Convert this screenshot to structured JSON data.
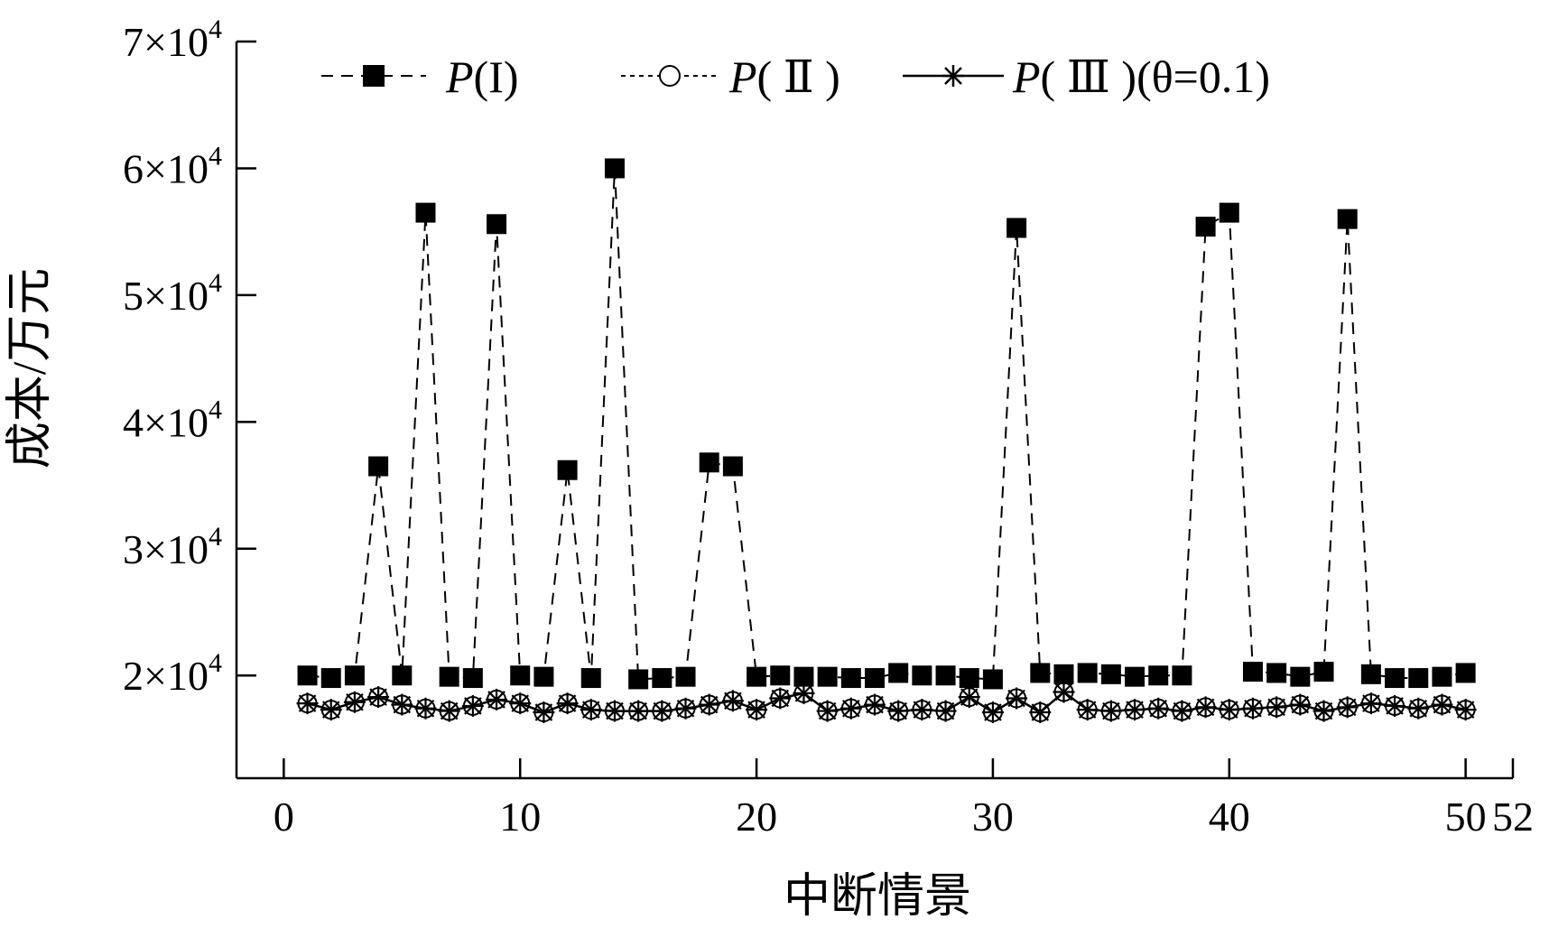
{
  "chart_data": {
    "type": "line",
    "title": "",
    "xlabel": "中断情景",
    "ylabel": "成本/万元",
    "xlim": [
      -2,
      52
    ],
    "ylim": [
      11900,
      70000
    ],
    "x_ticks": [
      0,
      10,
      20,
      30,
      40,
      50,
      52
    ],
    "x_tick_labels": [
      "0",
      "10",
      "20",
      "30",
      "40",
      "50",
      "52"
    ],
    "y_ticks": [
      20000,
      30000,
      40000,
      50000,
      60000,
      70000
    ],
    "y_tick_labels": [
      {
        "mantissa": "2",
        "exp": "4"
      },
      {
        "mantissa": "3",
        "exp": "4"
      },
      {
        "mantissa": "4",
        "exp": "4"
      },
      {
        "mantissa": "5",
        "exp": "4"
      },
      {
        "mantissa": "6",
        "exp": "4"
      },
      {
        "mantissa": "7",
        "exp": "4"
      }
    ],
    "y_tick_sep": "×10",
    "legend_position": "top",
    "legend": [
      {
        "prefix": "P",
        "rest": "(I)"
      },
      {
        "prefix": "P",
        "rest": "( Ⅱ )"
      },
      {
        "prefix": "P",
        "rest": "( Ⅲ )(θ=0.1)"
      }
    ],
    "x": [
      1,
      2,
      3,
      4,
      5,
      6,
      7,
      8,
      9,
      10,
      11,
      12,
      13,
      14,
      15,
      16,
      17,
      18,
      19,
      20,
      21,
      22,
      23,
      24,
      25,
      26,
      27,
      28,
      29,
      30,
      31,
      32,
      33,
      34,
      35,
      36,
      37,
      38,
      39,
      40,
      41,
      42,
      43,
      44,
      45,
      46,
      47,
      48,
      49,
      50
    ],
    "series": [
      {
        "marker": "filled-square",
        "line": "dashed",
        "color": "#000000",
        "values": [
          20000,
          19800,
          20000,
          36500,
          20000,
          56500,
          19900,
          19800,
          55600,
          20000,
          19900,
          36200,
          19800,
          60000,
          19700,
          19800,
          19900,
          36800,
          36500,
          19900,
          20000,
          19900,
          19900,
          19800,
          19800,
          20200,
          20000,
          20000,
          19800,
          19700,
          55300,
          20200,
          20100,
          20200,
          20100,
          19900,
          20000,
          20000,
          55400,
          56500,
          20300,
          20200,
          19900,
          20300,
          56000,
          20100,
          19800,
          19800,
          19900,
          20200
        ]
      },
      {
        "marker": "open-circle",
        "line": "dotted",
        "color": "#000000",
        "values": [
          17800,
          17300,
          17900,
          18300,
          17700,
          17400,
          17200,
          17600,
          18100,
          17800,
          17100,
          17800,
          17300,
          17200,
          17200,
          17200,
          17400,
          17700,
          18000,
          17300,
          18200,
          18600,
          17200,
          17400,
          17700,
          17200,
          17300,
          17200,
          18300,
          17100,
          18200,
          17100,
          18700,
          17300,
          17200,
          17300,
          17400,
          17200,
          17500,
          17300,
          17400,
          17500,
          17700,
          17200,
          17500,
          17800,
          17600,
          17400,
          17700,
          17300
        ]
      },
      {
        "marker": "asterisk",
        "line": "solid",
        "color": "#000000",
        "values": [
          17800,
          17300,
          17900,
          18300,
          17700,
          17400,
          17200,
          17600,
          18100,
          17800,
          17100,
          17800,
          17300,
          17200,
          17200,
          17200,
          17400,
          17700,
          18000,
          17300,
          18200,
          18600,
          17200,
          17400,
          17700,
          17200,
          17300,
          17200,
          18300,
          17100,
          18200,
          17100,
          18700,
          17300,
          17200,
          17300,
          17400,
          17200,
          17500,
          17300,
          17400,
          17500,
          17700,
          17200,
          17500,
          17800,
          17600,
          17400,
          17700,
          17300
        ]
      }
    ]
  }
}
